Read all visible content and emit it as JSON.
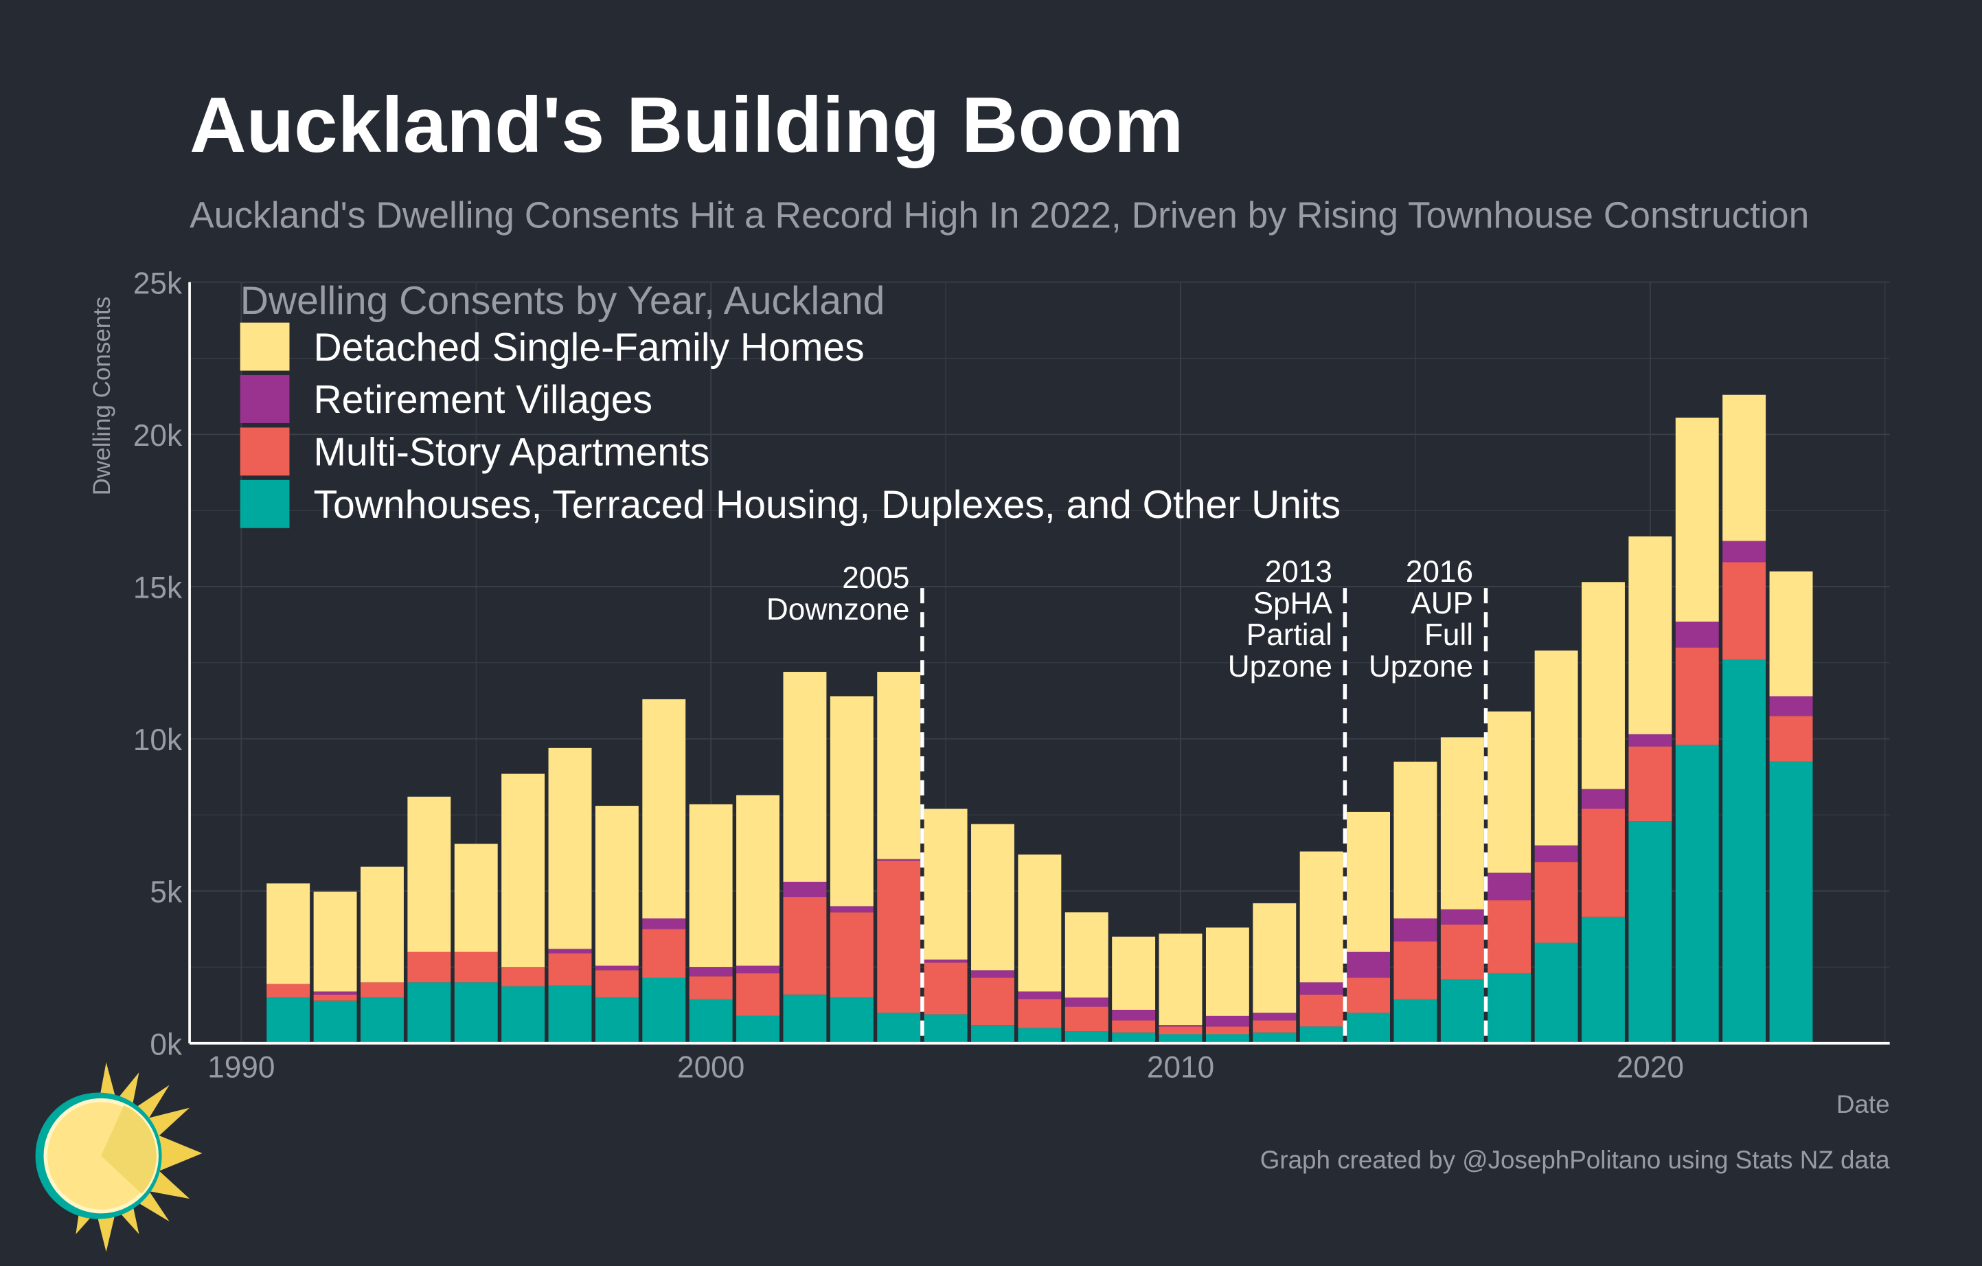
{
  "chart_data": {
    "type": "stacked_bar",
    "title": "Auckland's Building Boom",
    "subtitle": "Auckland's Dwelling Consents Hit a Record High In 2022, Driven by Rising Townhouse Construction",
    "y_axis_label": "Dwelling Consents",
    "x_axis_label": "Date",
    "legend_title": "Dwelling Consents by Year, Auckland",
    "caption": "Graph created by @JosephPolitano using Stats NZ data",
    "x": [
      1991,
      1992,
      1993,
      1994,
      1995,
      1996,
      1997,
      1998,
      1999,
      2000,
      2001,
      2002,
      2003,
      2004,
      2005,
      2006,
      2007,
      2008,
      2009,
      2010,
      2011,
      2012,
      2013,
      2014,
      2015,
      2016,
      2017,
      2018,
      2019,
      2020,
      2021,
      2022,
      2023
    ],
    "series": [
      {
        "name": "Townhouses, Terraced Housing, Duplexes, and Other Units",
        "color": "#00a99d",
        "values": [
          1500,
          1400,
          1500,
          2000,
          2000,
          1870,
          1900,
          1500,
          2150,
          1450,
          900,
          1600,
          1500,
          1000,
          950,
          600,
          500,
          400,
          350,
          300,
          300,
          350,
          550,
          1000,
          1450,
          2100,
          2300,
          3300,
          4150,
          7300,
          9800,
          12600,
          9250
        ]
      },
      {
        "name": "Multi-Story Apartments",
        "color": "#ee6055",
        "values": [
          450,
          200,
          500,
          1000,
          1000,
          630,
          1050,
          900,
          1600,
          750,
          1400,
          3200,
          2800,
          5000,
          1700,
          1550,
          950,
          800,
          400,
          250,
          250,
          400,
          1050,
          1150,
          1900,
          1800,
          2400,
          2650,
          3550,
          2450,
          3200,
          3200,
          1500
        ]
      },
      {
        "name": "Retirement Villages",
        "color": "#9a3390",
        "values": [
          0,
          100,
          0,
          0,
          0,
          0,
          150,
          150,
          350,
          300,
          250,
          500,
          200,
          50,
          100,
          250,
          250,
          300,
          350,
          50,
          350,
          250,
          400,
          850,
          750,
          500,
          900,
          550,
          650,
          400,
          850,
          700,
          650
        ]
      },
      {
        "name": "Detached Single-Family Homes",
        "color": "#ffe48a",
        "values": [
          3300,
          3280,
          3800,
          5100,
          3550,
          6350,
          6600,
          5250,
          7200,
          5350,
          5600,
          6900,
          6900,
          6150,
          4950,
          4800,
          4500,
          2800,
          2400,
          3000,
          2900,
          3600,
          4300,
          4600,
          5150,
          5650,
          5300,
          6400,
          6800,
          6500,
          6700,
          4800,
          4100
        ]
      }
    ],
    "xlim": [
      1988.9,
      2025.1
    ],
    "xticks": [
      1990,
      2000,
      2010,
      2020
    ],
    "ylim": [
      0,
      25000
    ],
    "yticks": [
      {
        "value": 0,
        "label": "0k"
      },
      {
        "value": 5000,
        "label": "5k"
      },
      {
        "value": 10000,
        "label": "10k"
      },
      {
        "value": 15000,
        "label": "15k"
      },
      {
        "value": 20000,
        "label": "20k"
      },
      {
        "value": 25000,
        "label": "25k"
      }
    ],
    "grid": true,
    "legend_position": "top-left",
    "annotations": [
      {
        "x": 2004.5,
        "text": [
          "2005",
          "Downzone"
        ]
      },
      {
        "x": 2013.5,
        "text": [
          "2013",
          "SpHA",
          "Partial",
          "Upzone"
        ]
      },
      {
        "x": 2016.5,
        "text": [
          "2016",
          "AUP",
          "Full",
          "Upzone"
        ]
      }
    ]
  }
}
